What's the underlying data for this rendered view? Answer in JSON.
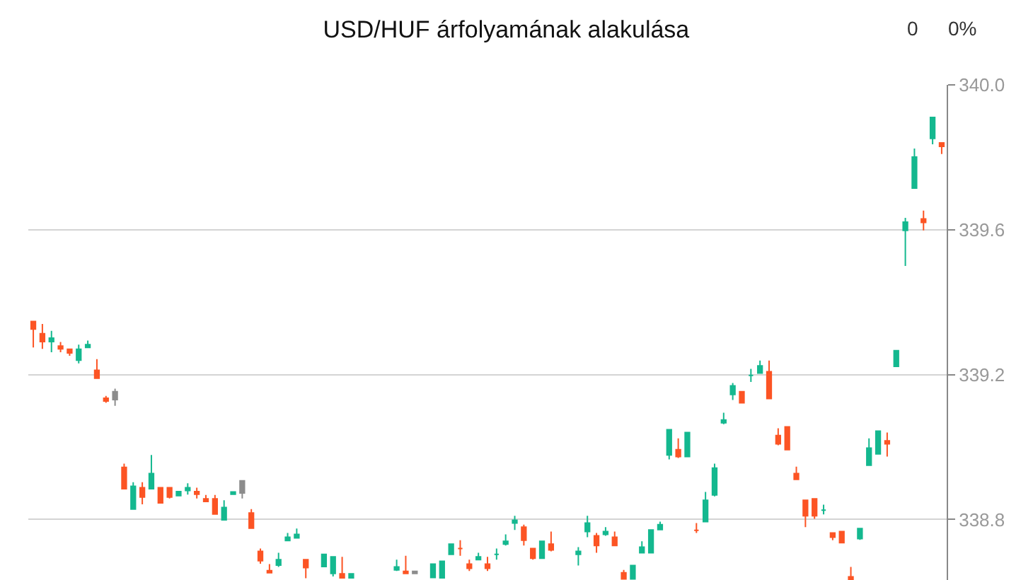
{
  "chart_data": {
    "type": "candlestick",
    "title": "USD/HUF árfolyamának alakulása",
    "annotations": [
      "0",
      "0%"
    ],
    "categories": [
      null,
      null,
      null,
      null,
      null,
      null,
      null,
      null,
      null,
      null,
      null,
      null,
      null,
      null,
      null,
      null,
      null,
      null,
      null,
      null,
      null,
      null,
      null,
      null,
      null,
      null,
      null,
      null,
      null,
      null,
      null,
      null,
      null,
      null,
      null,
      null,
      null,
      null,
      null,
      null,
      null,
      null,
      null,
      null,
      null,
      null,
      null,
      null,
      null,
      null,
      null,
      null,
      null,
      null,
      null,
      null,
      null,
      null,
      null,
      null,
      null,
      null,
      null,
      null,
      null,
      null,
      null,
      null,
      null,
      null,
      null,
      null,
      null,
      null,
      null,
      null,
      null,
      null,
      null,
      null,
      null,
      null,
      null,
      null,
      null,
      null,
      null,
      null,
      null,
      null,
      null,
      null,
      null,
      null,
      null,
      null,
      null,
      null,
      null,
      null,
      null
    ],
    "ohlc": [
      [
        339.347,
        339.347,
        339.275,
        339.326
      ],
      [
        339.313,
        339.34,
        339.271,
        339.291
      ],
      [
        339.291,
        339.321,
        339.262,
        339.301
      ],
      [
        339.279,
        339.29,
        339.262,
        339.271
      ],
      [
        339.27,
        339.27,
        339.252,
        339.26
      ],
      [
        339.24,
        339.283,
        339.231,
        339.27
      ],
      [
        339.275,
        339.294,
        339.275,
        339.283
      ],
      [
        339.212,
        339.243,
        339.19,
        339.19
      ],
      [
        339.135,
        339.141,
        339.122,
        339.127
      ],
      [
        339.153,
        339.161,
        339.114,
        339.131
      ],
      [
        338.944,
        338.954,
        338.885,
        338.885
      ],
      [
        338.829,
        338.903,
        338.829,
        338.892
      ],
      [
        338.888,
        338.903,
        338.842,
        338.862
      ],
      [
        338.885,
        338.978,
        338.885,
        338.927
      ],
      [
        338.888,
        338.888,
        338.846,
        338.846
      ],
      [
        338.888,
        338.888,
        338.858,
        338.862
      ],
      [
        338.866,
        338.877,
        338.866,
        338.877
      ],
      [
        338.88,
        338.9,
        338.869,
        338.888
      ],
      [
        338.877,
        338.888,
        338.858,
        338.87
      ],
      [
        338.857,
        338.868,
        338.85,
        338.85
      ],
      [
        338.857,
        338.868,
        338.815,
        338.815
      ],
      [
        338.799,
        338.853,
        338.799,
        338.833
      ],
      [
        338.87,
        338.876,
        338.87,
        338.876
      ],
      [
        338.907,
        338.907,
        338.858,
        338.873
      ],
      [
        338.818,
        338.829,
        338.776,
        338.776
      ],
      [
        338.712,
        338.72,
        338.678,
        338.686
      ],
      [
        338.659,
        338.677,
        338.653,
        338.653
      ],
      [
        338.674,
        338.708,
        338.669,
        338.689
      ],
      [
        338.742,
        338.763,
        338.742,
        338.751
      ],
      [
        338.749,
        338.775,
        338.749,
        338.759
      ],
      [
        338.689,
        338.689,
        338.638,
        338.667
      ],
      null,
      [
        338.67,
        338.704,
        338.67,
        338.704
      ],
      [
        338.651,
        338.697,
        338.643,
        338.697
      ],
      [
        338.65,
        338.697,
        338.639,
        338.639
      ],
      [
        338.639,
        338.65,
        338.639,
        338.65
      ],
      null,
      null,
      null,
      null,
      [
        338.661,
        338.689,
        338.658,
        338.669
      ],
      [
        338.657,
        338.7,
        338.651,
        338.651
      ],
      [
        338.657,
        338.657,
        338.651,
        338.651
      ],
      null,
      [
        338.64,
        338.677,
        338.64,
        338.677
      ],
      [
        338.639,
        338.685,
        338.639,
        338.685
      ],
      [
        338.704,
        338.732,
        338.704,
        338.732
      ],
      [
        338.72,
        338.743,
        338.7,
        338.72
      ],
      [
        338.677,
        338.689,
        338.658,
        338.665
      ],
      [
        338.689,
        338.708,
        338.689,
        338.697
      ],
      [
        338.677,
        338.697,
        338.658,
        338.665
      ],
      [
        338.704,
        338.72,
        338.689,
        338.704
      ],
      [
        338.732,
        338.759,
        338.728,
        338.74
      ],
      [
        338.79,
        338.81,
        338.771,
        338.798
      ],
      [
        338.779,
        338.786,
        338.728,
        338.743
      ],
      [
        338.72,
        338.72,
        338.689,
        338.693
      ],
      [
        338.693,
        338.74,
        338.693,
        338.74
      ],
      [
        338.732,
        338.767,
        338.712,
        338.716
      ],
      null,
      null,
      [
        338.704,
        338.724,
        338.673,
        338.712
      ],
      [
        338.767,
        338.81,
        338.751,
        338.79
      ],
      [
        338.755,
        338.763,
        338.708,
        338.728
      ],
      [
        338.759,
        338.779,
        338.755,
        338.767
      ],
      [
        338.751,
        338.767,
        338.728,
        338.728
      ],
      [
        338.653,
        338.661,
        338.636,
        338.636
      ],
      [
        338.636,
        338.673,
        338.636,
        338.673
      ],
      [
        338.708,
        338.74,
        338.708,
        338.724
      ],
      [
        338.708,
        338.771,
        338.708,
        338.771
      ],
      [
        338.772,
        338.794,
        338.772,
        338.786
      ],
      [
        338.978,
        339.048,
        338.966,
        339.048
      ],
      [
        338.993,
        339.024,
        338.97,
        338.974
      ],
      [
        338.974,
        339.04,
        338.974,
        339.04
      ],
      [
        338.77,
        338.79,
        338.763,
        338.77
      ],
      [
        338.794,
        338.876,
        338.794,
        338.853
      ],
      [
        338.868,
        338.954,
        338.864,
        338.942
      ],
      [
        339.067,
        339.095,
        339.063,
        339.075
      ],
      [
        339.145,
        339.177,
        339.13,
        339.169
      ],
      [
        339.153,
        339.153,
        339.122,
        339.122
      ],
      [
        339.198,
        339.216,
        339.18,
        339.198
      ],
      [
        339.204,
        339.239,
        339.204,
        339.224
      ],
      [
        339.208,
        339.239,
        339.134,
        339.134
      ],
      [
        339.032,
        339.052,
        339.005,
        339.009
      ],
      [
        339.056,
        339.056,
        338.993,
        338.993
      ],
      [
        338.927,
        338.946,
        338.911,
        338.911
      ],
      [
        338.853,
        338.853,
        338.779,
        338.81
      ],
      [
        338.857,
        338.857,
        338.802,
        338.81
      ],
      [
        338.826,
        338.841,
        338.814,
        338.826
      ],
      [
        338.763,
        338.763,
        338.743,
        338.751
      ],
      [
        338.767,
        338.767,
        338.736,
        338.736
      ],
      [
        338.642,
        338.669,
        338.635,
        338.635
      ],
      [
        338.747,
        338.775,
        338.744,
        338.775
      ],
      [
        338.95,
        339.024,
        338.95,
        338.997
      ],
      [
        338.981,
        339.044,
        338.981,
        339.044
      ],
      [
        339.017,
        339.04,
        338.974,
        339.009
      ],
      [
        339.223,
        339.266,
        339.223,
        339.266
      ],
      [
        339.598,
        339.633,
        339.5,
        339.621
      ],
      [
        339.715,
        339.824,
        339.715,
        339.801
      ],
      [
        339.63,
        339.653,
        339.598,
        339.62
      ],
      [
        339.852,
        339.91,
        339.836,
        339.91
      ],
      [
        339.84,
        339.84,
        339.809,
        339.83
      ]
    ],
    "colors": [
      "#fc5424",
      "#fc5424",
      "#14b88f",
      "#fc5424",
      "#fc5424",
      "#14b88f",
      "#14b88f",
      "#fc5424",
      "#fc5424",
      "#8c8c8c",
      "#fc5424",
      "#14b88f",
      "#fc5424",
      "#14b88f",
      "#fc5424",
      "#fc5424",
      "#14b88f",
      "#14b88f",
      "#fc5424",
      "#fc5424",
      "#fc5424",
      "#14b88f",
      "#14b88f",
      "#8c8c8c",
      "#fc5424",
      "#fc5424",
      "#fc5424",
      "#14b88f",
      "#14b88f",
      "#14b88f",
      "#fc5424",
      null,
      "#14b88f",
      "#14b88f",
      "#fc5424",
      "#14b88f",
      null,
      null,
      null,
      null,
      "#14b88f",
      "#fc5424",
      "#8c8c8c",
      null,
      "#14b88f",
      "#14b88f",
      "#14b88f",
      "#fc5424",
      "#fc5424",
      "#14b88f",
      "#fc5424",
      "#14b88f",
      "#14b88f",
      "#14b88f",
      "#fc5424",
      "#fc5424",
      "#14b88f",
      "#fc5424",
      null,
      null,
      "#14b88f",
      "#14b88f",
      "#fc5424",
      "#14b88f",
      "#fc5424",
      "#fc5424",
      "#14b88f",
      "#14b88f",
      "#14b88f",
      "#14b88f",
      "#14b88f",
      "#fc5424",
      "#14b88f",
      "#fc5424",
      "#14b88f",
      "#14b88f",
      "#14b88f",
      "#14b88f",
      "#fc5424",
      "#14b88f",
      "#14b88f",
      "#fc5424",
      "#fc5424",
      "#fc5424",
      "#fc5424",
      "#fc5424",
      "#fc5424",
      "#14b88f",
      "#fc5424",
      "#fc5424",
      "#fc5424",
      "#14b88f",
      "#14b88f",
      "#14b88f",
      "#fc5424",
      "#14b88f",
      "#14b88f",
      "#14b88f",
      "#fc5424",
      "#14b88f",
      "#fc5424"
    ],
    "ylim": [
      338.633,
      340.0
    ],
    "yticks": [
      {
        "value": 338.8,
        "label": "338.8"
      },
      {
        "value": 339.2,
        "label": "339.2"
      },
      {
        "value": 339.6,
        "label": "339.6"
      },
      {
        "value": 340.0,
        "label": "340.0"
      }
    ],
    "grid": "y"
  }
}
